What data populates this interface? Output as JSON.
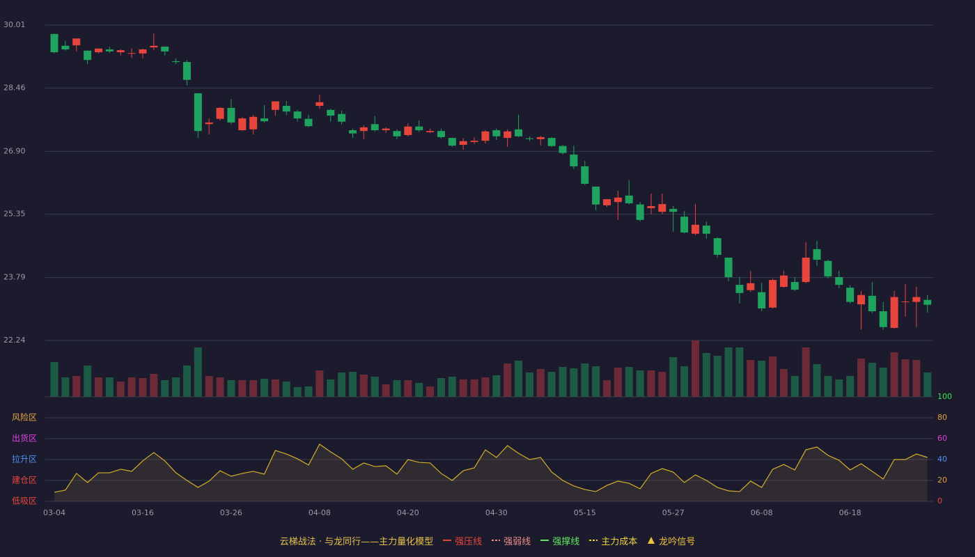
{
  "chart_data": [
    {
      "type": "candlestick",
      "up_color": "#e8453c",
      "down_color": "#1fa35e",
      "grid": true,
      "ylim": [
        22.24,
        30.01
      ],
      "yticks": [
        22.24,
        23.79,
        25.35,
        {
          "value": 26.9,
          "label": "26.90"
        },
        28.46,
        30.01
      ],
      "open": [
        29.79,
        29.5,
        29.51,
        29.38,
        29.34,
        29.41,
        29.34,
        29.31,
        29.31,
        29.46,
        29.48,
        29.12,
        29.1,
        28.33,
        27.57,
        27.7,
        27.97,
        27.42,
        27.44,
        27.71,
        27.92,
        28.02,
        27.88,
        27.7,
        28.02,
        27.92,
        27.82,
        27.42,
        27.4,
        27.57,
        27.42,
        27.4,
        27.3,
        27.51,
        27.37,
        27.4,
        27.23,
        27.06,
        27.13,
        27.16,
        27.42,
        27.23,
        27.44,
        27.22,
        27.2,
        27.23,
        27.03,
        26.82,
        26.53,
        26.03,
        25.57,
        25.65,
        25.81,
        25.59,
        25.5,
        25.41,
        25.48,
        25.29,
        24.87,
        25.07,
        24.76,
        24.28,
        23.61,
        23.48,
        23.43,
        23.05,
        23.56,
        23.68,
        23.68,
        24.49,
        24.2,
        23.8,
        23.54,
        23.13,
        23.34,
        22.96,
        22.55,
        23.19,
        23.19,
        23.24
      ],
      "close": [
        29.34,
        29.41,
        29.68,
        29.15,
        29.43,
        29.36,
        29.39,
        29.32,
        29.41,
        29.5,
        29.36,
        29.1,
        28.66,
        27.4,
        27.61,
        27.97,
        27.61,
        27.71,
        27.75,
        27.64,
        28.13,
        27.88,
        27.71,
        27.52,
        28.11,
        27.78,
        27.63,
        27.34,
        27.49,
        27.42,
        27.46,
        27.27,
        27.51,
        27.42,
        27.4,
        27.25,
        27.04,
        27.15,
        27.16,
        27.39,
        27.27,
        27.39,
        27.27,
        27.2,
        27.25,
        27.03,
        26.86,
        26.53,
        26.1,
        25.59,
        25.72,
        25.76,
        25.62,
        25.21,
        25.55,
        25.6,
        25.41,
        24.9,
        25.09,
        24.87,
        24.35,
        23.8,
        23.41,
        23.65,
        23.03,
        23.73,
        23.84,
        23.49,
        24.28,
        24.23,
        23.82,
        23.61,
        23.19,
        23.36,
        22.96,
        22.57,
        23.31,
        23.2,
        23.31,
        23.12
      ],
      "low": [
        29.31,
        29.38,
        29.36,
        29.05,
        29.31,
        29.32,
        29.26,
        29.2,
        29.19,
        29.39,
        29.26,
        29.05,
        28.52,
        27.23,
        27.32,
        27.66,
        27.57,
        27.4,
        27.32,
        27.61,
        27.78,
        27.8,
        27.63,
        27.49,
        27.95,
        27.63,
        27.56,
        27.23,
        27.2,
        27.39,
        27.35,
        27.2,
        27.27,
        27.37,
        27.35,
        27.22,
        27.01,
        26.94,
        27.08,
        27.09,
        27.18,
        27.01,
        27.25,
        27.15,
        27.04,
        27.01,
        26.82,
        26.46,
        26.07,
        25.45,
        25.53,
        25.21,
        25.59,
        25.17,
        25.35,
        25.35,
        24.92,
        24.88,
        24.83,
        24.75,
        24.28,
        23.7,
        23.15,
        23.43,
        22.96,
        23.03,
        23.54,
        23.46,
        23.65,
        24.08,
        23.77,
        23.53,
        23.15,
        22.51,
        22.91,
        22.5,
        22.53,
        22.83,
        22.57,
        22.93
      ],
      "high": [
        29.8,
        29.62,
        29.68,
        29.39,
        29.44,
        29.48,
        29.41,
        29.44,
        29.43,
        29.8,
        29.48,
        29.19,
        29.15,
        28.33,
        27.71,
        27.99,
        28.19,
        27.75,
        27.8,
        28.04,
        28.13,
        28.14,
        27.92,
        27.8,
        28.3,
        27.95,
        27.9,
        27.46,
        27.54,
        27.77,
        27.49,
        27.44,
        27.59,
        27.66,
        27.46,
        27.46,
        27.23,
        27.23,
        27.25,
        27.42,
        27.46,
        27.44,
        27.8,
        27.27,
        27.28,
        27.25,
        27.06,
        27.04,
        26.67,
        26.03,
        25.72,
        25.93,
        26.19,
        25.65,
        25.86,
        25.86,
        25.55,
        25.43,
        25.6,
        25.17,
        24.78,
        24.28,
        23.8,
        23.96,
        23.66,
        23.77,
        23.96,
        23.8,
        24.66,
        24.69,
        24.23,
        23.96,
        23.6,
        23.46,
        23.68,
        23.19,
        23.46,
        23.63,
        23.56,
        23.36
      ]
    },
    {
      "type": "bar",
      "up_color": "#6b2a35",
      "down_color": "#1d5a45",
      "ylim": [
        0,
        81
      ],
      "values": [
        50,
        28,
        30,
        45,
        28,
        28,
        22,
        28,
        27,
        33,
        24,
        28,
        45,
        71,
        30,
        28,
        24,
        24,
        24,
        26,
        25,
        22,
        14,
        15,
        38,
        25,
        35,
        36,
        32,
        29,
        18,
        24,
        24,
        20,
        15,
        27,
        29,
        25,
        25,
        28,
        31,
        48,
        52,
        35,
        40,
        36,
        43,
        41,
        48,
        44,
        24,
        42,
        43,
        38,
        38,
        36,
        57,
        44,
        81,
        63,
        59,
        71,
        71,
        53,
        52,
        58,
        40,
        30,
        71,
        47,
        30,
        25,
        30,
        55,
        49,
        42,
        64,
        54,
        53,
        35
      ]
    },
    {
      "type": "area",
      "color": "#d4b02a",
      "fill": "rgba(120,100,60,0.22)",
      "grid": true,
      "ylim": [
        0,
        100
      ],
      "yticks": [
        0,
        20,
        40,
        60,
        80,
        100
      ],
      "ytick_colors": [
        "#e8453c",
        "#e8a33c",
        "#4f8ff0",
        "#e040e0",
        "#e8a33c",
        "#3ce84a"
      ],
      "zones": [
        {
          "value": 0,
          "label": "低吸区",
          "color": "#e8453c"
        },
        {
          "value": 20,
          "label": "建仓区",
          "color": "#e8453c"
        },
        {
          "value": 40,
          "label": "拉升区",
          "color": "#4f8ff0"
        },
        {
          "value": 60,
          "label": "出货区",
          "color": "#e040e0"
        },
        {
          "value": 80,
          "label": "风险区",
          "color": "#e8a33c"
        }
      ],
      "categories": [
        "03-04",
        null,
        null,
        null,
        null,
        null,
        null,
        null,
        "03-16",
        null,
        null,
        null,
        null,
        null,
        null,
        null,
        "03-26",
        null,
        null,
        null,
        null,
        null,
        null,
        null,
        "04-08",
        null,
        null,
        null,
        null,
        null,
        null,
        null,
        "04-20",
        null,
        null,
        null,
        null,
        null,
        null,
        null,
        "04-30",
        null,
        null,
        null,
        null,
        null,
        null,
        null,
        "05-15",
        null,
        null,
        null,
        null,
        null,
        null,
        null,
        "05-27",
        null,
        null,
        null,
        null,
        null,
        null,
        null,
        "06-08",
        null,
        null,
        null,
        null,
        null,
        null,
        null,
        "06-18",
        null,
        null,
        null,
        null,
        null,
        null,
        null
      ],
      "values": [
        8.7,
        10.7,
        26.7,
        18,
        27.3,
        27.3,
        30.7,
        28.7,
        38.7,
        46.7,
        38.7,
        27.3,
        20,
        13.3,
        19.3,
        29.3,
        24,
        26.7,
        28.7,
        26,
        48.7,
        45.3,
        40.7,
        34.7,
        54.7,
        47.3,
        40.7,
        30.7,
        36.7,
        33.3,
        34,
        26,
        40,
        37.3,
        36.7,
        26.7,
        20,
        29.3,
        32,
        49.3,
        42,
        53.3,
        46,
        40,
        42,
        28,
        20,
        14.7,
        11.3,
        9.3,
        15.3,
        19.3,
        17.3,
        12,
        26.7,
        31.3,
        28,
        18,
        25.3,
        20,
        13.3,
        10,
        9.3,
        19.3,
        13.3,
        30.7,
        35.3,
        30,
        49.3,
        52,
        44,
        39.3,
        30,
        36,
        28.7,
        21.3,
        40,
        40,
        45.3,
        42
      ]
    }
  ],
  "legend": {
    "title": "云梯战法 · 与龙同行——主力量化模型",
    "title_color": "#e8c04a",
    "items": [
      {
        "name": "强压线",
        "color": "#e8453c",
        "style": "solid"
      },
      {
        "name": "强弱线",
        "color": "#f08a8a",
        "style": "dashed"
      },
      {
        "name": "强撑线",
        "color": "#5fe85f",
        "style": "solid"
      },
      {
        "name": "主力成本",
        "color": "#f0d040",
        "style": "dashed"
      },
      {
        "name": "龙吟信号",
        "color": "#f0c040",
        "style": "triangle"
      }
    ]
  }
}
